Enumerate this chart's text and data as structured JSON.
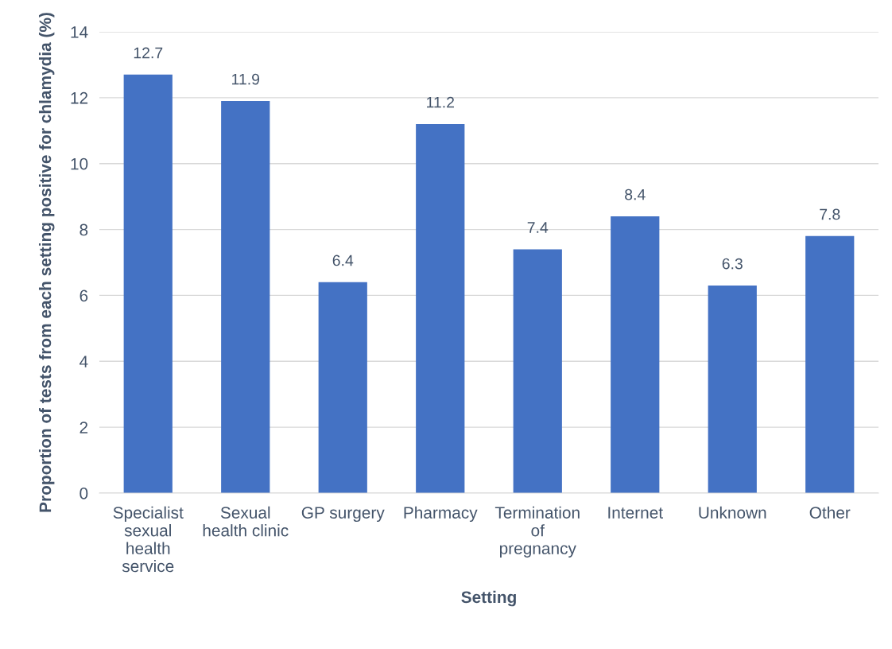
{
  "chart_data": {
    "type": "bar",
    "categories": [
      "Specialist\nsexual\nhealth\nservice",
      "Sexual\nhealth clinic",
      "GP surgery",
      "Pharmacy",
      "Termination\nof\npregnancy",
      "Internet",
      "Unknown",
      "Other"
    ],
    "values": [
      12.7,
      11.9,
      6.4,
      11.2,
      7.4,
      8.4,
      6.3,
      7.8
    ],
    "color": "#4472c4",
    "xlabel": "Setting",
    "ylabel": "Proportion of tests from each setting positive for chlamydia (%)",
    "ylim": [
      0,
      14
    ],
    "yticks": [
      0,
      2,
      4,
      6,
      8,
      10,
      12,
      14
    ],
    "grid": "y",
    "data_labels": true
  }
}
